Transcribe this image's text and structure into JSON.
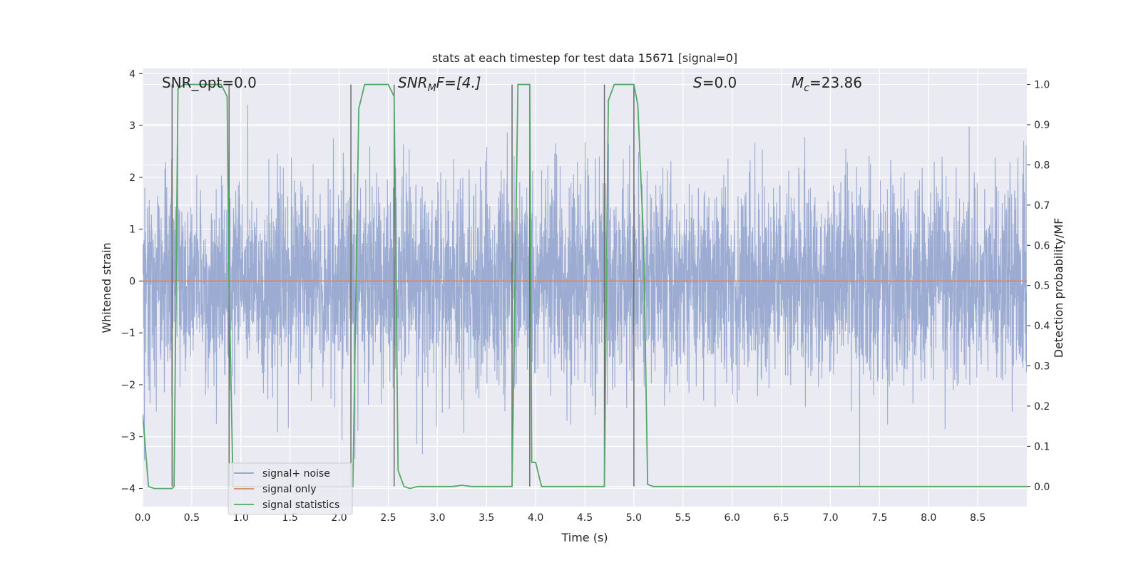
{
  "chart_data": {
    "type": "line",
    "title": "stats at each timestep for test data 15671 [signal=0]",
    "xlabel": "Time (s)",
    "ylabel": "Whitened strain",
    "y2label": "Detection probability/MF",
    "xlim": [
      0,
      9.0
    ],
    "ylim": [
      -4.35,
      4.1
    ],
    "y2lim": [
      -0.05,
      1.04
    ],
    "grid": true,
    "legend_placement": "lower-left",
    "x_ticks": [
      "0.0",
      "0.5",
      "1.0",
      "1.5",
      "2.0",
      "2.5",
      "3.0",
      "3.5",
      "4.0",
      "4.5",
      "5.0",
      "5.5",
      "6.0",
      "6.5",
      "7.0",
      "7.5",
      "8.0",
      "8.5"
    ],
    "y_ticks": [
      "4",
      "3",
      "2",
      "1",
      "0",
      "−1",
      "−2",
      "−3",
      "−4"
    ],
    "y2_ticks": [
      "1.0",
      "0.9",
      "0.8",
      "0.7",
      "0.6",
      "0.5",
      "0.4",
      "0.3",
      "0.2",
      "0.1",
      "0.0"
    ],
    "annotations": {
      "snr_opt": "SNR_opt=0.0",
      "snr_mf_main": "SNR",
      "snr_mf_sub": "M",
      "snr_mf_tail": "F=[4.]",
      "s_main": "S",
      "s_tail": "=0.0",
      "mc_main": "M",
      "mc_sub": "c",
      "mc_tail": "=23.86"
    },
    "series": [
      {
        "name": "signal+ noise",
        "color": "#8da0cb",
        "kind": "noise",
        "sigma": 0.95
      },
      {
        "name": "signal only",
        "color": "#dd8452",
        "values_constant": 0
      },
      {
        "name": "signal statistics",
        "color": "#55a868",
        "axis": "right",
        "x": [
          0.0,
          0.06,
          0.12,
          0.2,
          0.28,
          0.3,
          0.32,
          0.36,
          0.42,
          0.5,
          0.6,
          0.7,
          0.8,
          0.86,
          0.88,
          0.92,
          1.0,
          1.2,
          1.6,
          2.0,
          2.1,
          2.14,
          2.2,
          2.26,
          2.34,
          2.5,
          2.56,
          2.6,
          2.66,
          2.72,
          2.8,
          3.0,
          3.15,
          3.25,
          3.35,
          3.6,
          3.7,
          3.76,
          3.82,
          3.94,
          3.96,
          4.0,
          4.06,
          4.2,
          4.5,
          4.68,
          4.7,
          4.74,
          4.8,
          5.0,
          5.04,
          5.1,
          5.14,
          5.2,
          5.3,
          6.0,
          7.0,
          8.0,
          9.0
        ],
        "y": [
          0.18,
          0.0,
          -0.005,
          -0.005,
          -0.005,
          -0.005,
          0.0,
          0.99,
          1.0,
          1.0,
          1.0,
          1.0,
          1.0,
          0.97,
          0.5,
          0.0,
          0.0,
          0.0,
          0.0,
          0.0,
          0.0,
          0.0,
          0.94,
          1.0,
          1.0,
          1.0,
          0.97,
          0.04,
          0.0,
          -0.005,
          0.0,
          0.0,
          0.0,
          0.003,
          0.0,
          0.0,
          0.0,
          0.0,
          1.0,
          1.0,
          0.06,
          0.06,
          0.0,
          0.0,
          0.0,
          0.0,
          0.0,
          0.96,
          1.0,
          1.0,
          0.95,
          0.6,
          0.005,
          0.0,
          0.0,
          0.0,
          0.0,
          0.0,
          0.0
        ]
      },
      {
        "name": "",
        "color": "#6b6b6b",
        "kind": "vlines",
        "x": [
          0.3,
          0.88,
          2.12,
          2.56,
          3.76,
          3.94,
          4.7,
          5.0
        ]
      }
    ],
    "legend": [
      "signal+ noise",
      "signal only",
      "signal statistics"
    ]
  }
}
